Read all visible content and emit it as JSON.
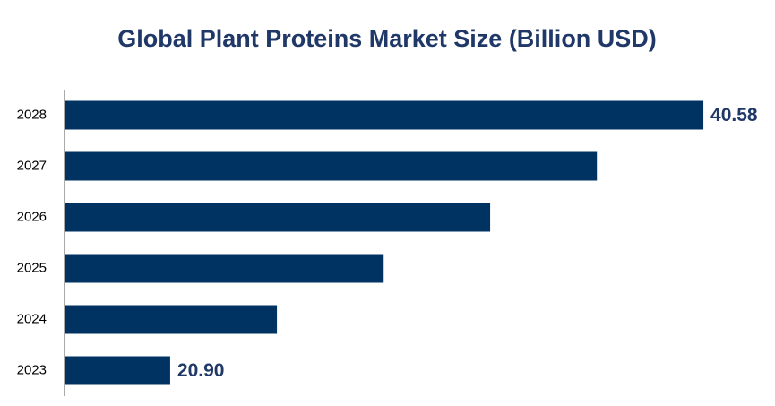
{
  "chart_data": {
    "type": "barh",
    "title": "Global Plant Proteins Market Size (Billion USD)",
    "categories": [
      "2023",
      "2024",
      "2025",
      "2026",
      "2027",
      "2028"
    ],
    "values": [
      20.9,
      24.84,
      28.78,
      32.71,
      36.65,
      40.58
    ],
    "value_labels": [
      "20.90",
      null,
      null,
      null,
      null,
      "40.58"
    ],
    "color": "#003361",
    "xlim": [
      17,
      42
    ]
  }
}
